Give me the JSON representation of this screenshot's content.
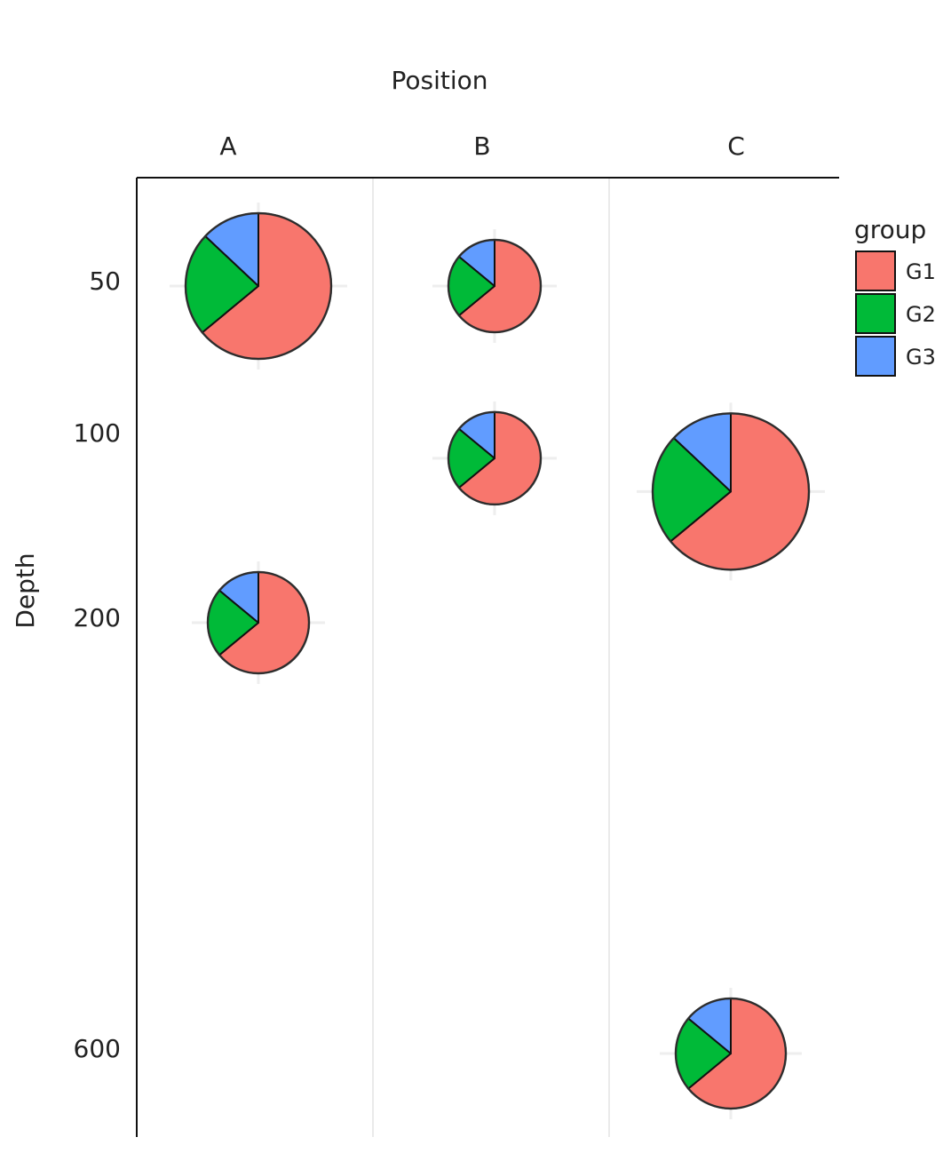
{
  "chart_data": {
    "type": "scatterpie",
    "x_label": "Position",
    "y_label": "Depth",
    "categories": [
      "A",
      "B",
      "C"
    ],
    "x": [
      "A",
      "B",
      "B",
      "C",
      "A",
      "C"
    ],
    "y": [
      50,
      50,
      111,
      129,
      200,
      600
    ],
    "sizes": [
      82,
      52,
      52,
      88,
      57,
      62
    ],
    "series": [
      {
        "name": "G1",
        "color": "#f8766d",
        "values": [
          64,
          64,
          64,
          64,
          64,
          64
        ]
      },
      {
        "name": "G2",
        "color": "#00ba38",
        "values": [
          23,
          22,
          22,
          23,
          22,
          22
        ]
      },
      {
        "name": "G3",
        "color": "#619cff",
        "values": [
          13,
          14,
          14,
          13,
          14,
          14
        ]
      }
    ],
    "ylim": [
      13,
      674
    ],
    "yticks": [
      50,
      100,
      200,
      600
    ],
    "y_reversed": true,
    "grid": true,
    "legend_title": "group",
    "legend_position": "right"
  }
}
